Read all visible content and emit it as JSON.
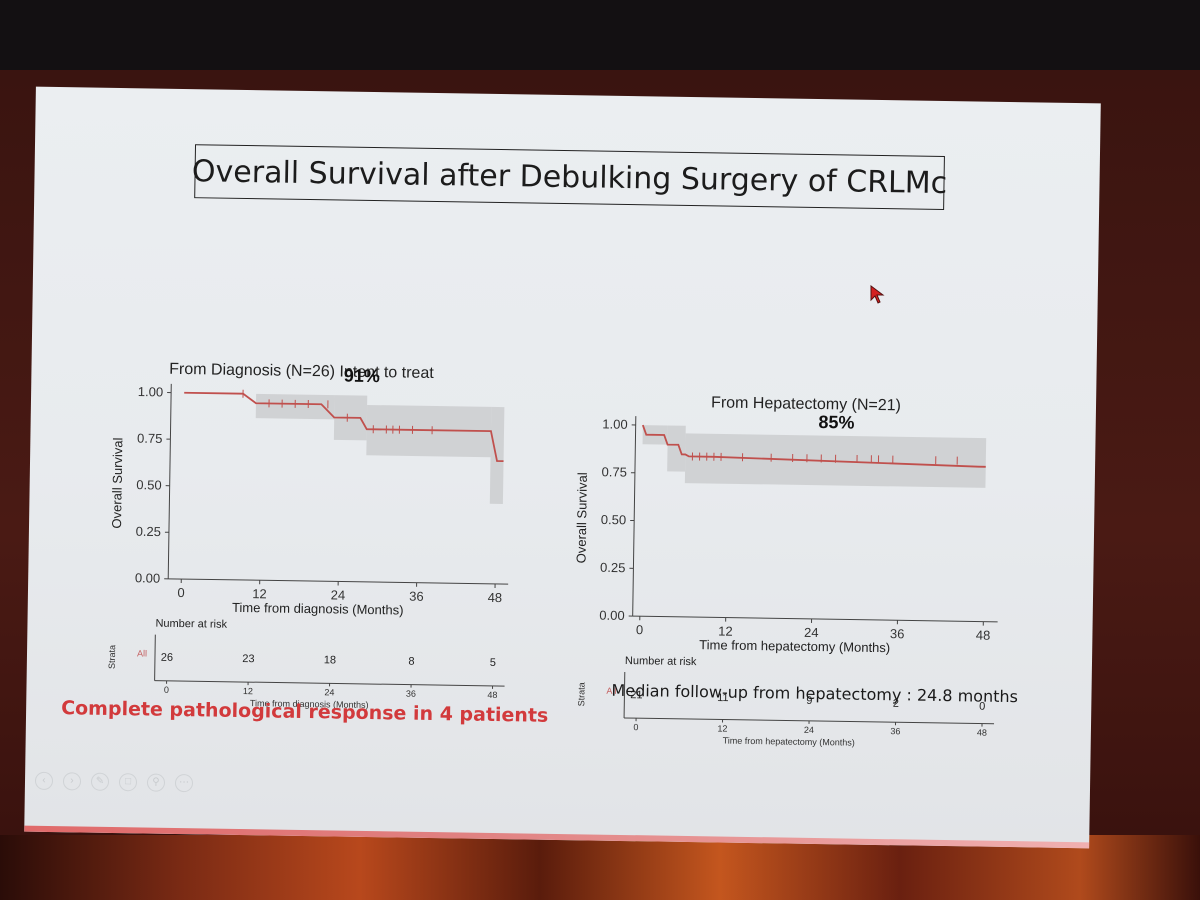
{
  "slide": {
    "title": "Overall Survival after Debulking Surgery of CRLMc",
    "followup_text": "Median follow-up from hepatectomy  : 24.8 months",
    "pcr_text": "Complete pathological response in 4 patients",
    "toolbar_icons": [
      "back-icon",
      "forward-icon",
      "pen-icon",
      "slides-icon",
      "zoom-icon",
      "more-icon"
    ],
    "colors": {
      "survival_line": "#c0504d",
      "ci_band": "#c8c9cb",
      "accent_text": "#d23a3c",
      "bottom_rule": "#e06a6a"
    }
  },
  "chart_data": [
    {
      "type": "line",
      "title": "From Diagnosis (N=26) Intent to treat",
      "annotation": "91%",
      "xlabel": "Time from diagnosis (Months)",
      "ylabel": "Overall Survival",
      "xlim": [
        -2,
        50
      ],
      "ylim": [
        0,
        1.02
      ],
      "x_ticks": [
        "0",
        "12",
        "24",
        "36",
        "48"
      ],
      "y_ticks": [
        "0.00",
        "0.25",
        "0.50",
        "0.75",
        "1.00"
      ],
      "curve": [
        [
          0,
          1.0
        ],
        [
          9,
          1.0
        ],
        [
          11,
          0.95
        ],
        [
          16,
          0.95
        ],
        [
          21,
          0.95
        ],
        [
          23,
          0.88
        ],
        [
          27,
          0.88
        ],
        [
          28,
          0.82
        ],
        [
          34,
          0.82
        ],
        [
          47,
          0.82
        ],
        [
          48,
          0.66
        ],
        [
          49,
          0.66
        ]
      ],
      "ci_band": [
        {
          "x": [
            11,
            23
          ],
          "lower": 0.87,
          "upper": 1.0
        },
        {
          "x": [
            23,
            28
          ],
          "lower": 0.76,
          "upper": 1.0
        },
        {
          "x": [
            28,
            47
          ],
          "lower": 0.68,
          "upper": 0.95
        },
        {
          "x": [
            47,
            49
          ],
          "lower": 0.43,
          "upper": 0.95
        }
      ],
      "censor_times": [
        9,
        13,
        15,
        17,
        19,
        22,
        25,
        29,
        31,
        32,
        33,
        35,
        38
      ],
      "risk_table": {
        "title": "Number at risk",
        "ylabel": "Strata",
        "strata": "All",
        "xlabel": "Time from diagnosis (Months)",
        "x_ticks": [
          "0",
          "12",
          "24",
          "36",
          "48"
        ],
        "numbers": [
          26,
          23,
          18,
          8,
          5
        ]
      }
    },
    {
      "type": "line",
      "title": "From Hepatectomy (N=21)",
      "annotation": "85%",
      "xlabel": "Time from hepatectomy (Months)",
      "ylabel": "Overall Survival",
      "xlim": [
        -1,
        50
      ],
      "ylim": [
        0,
        1.02
      ],
      "x_ticks": [
        "0",
        "12",
        "24",
        "36",
        "48"
      ],
      "y_ticks": [
        "0.00",
        "0.25",
        "0.50",
        "0.75",
        "1.00"
      ],
      "curve": [
        [
          0,
          1.0
        ],
        [
          0.5,
          0.95
        ],
        [
          3,
          0.95
        ],
        [
          3.5,
          0.9
        ],
        [
          5,
          0.9
        ],
        [
          5.5,
          0.85
        ],
        [
          6,
          0.85
        ],
        [
          6.5,
          0.84
        ],
        [
          10,
          0.84
        ],
        [
          47,
          0.81
        ],
        [
          48,
          0.81
        ]
      ],
      "ci_band": [
        {
          "x": [
            0,
            3.5
          ],
          "lower": 0.9,
          "upper": 1.0
        },
        {
          "x": [
            3.5,
            6
          ],
          "lower": 0.76,
          "upper": 1.0
        },
        {
          "x": [
            6,
            48
          ],
          "lower": 0.7,
          "upper": 0.96
        }
      ],
      "censor_times": [
        7,
        8,
        9,
        10,
        11,
        14,
        18,
        21,
        23,
        25,
        27,
        30,
        32,
        33,
        35,
        41,
        44
      ],
      "risk_table": {
        "title": "Number at risk",
        "ylabel": "Strata",
        "strata": "All",
        "xlabel": "Time from hepatectomy (Months)",
        "x_ticks": [
          "0",
          "12",
          "24",
          "36",
          "48"
        ],
        "numbers": [
          21,
          11,
          9,
          2,
          0
        ]
      }
    }
  ]
}
